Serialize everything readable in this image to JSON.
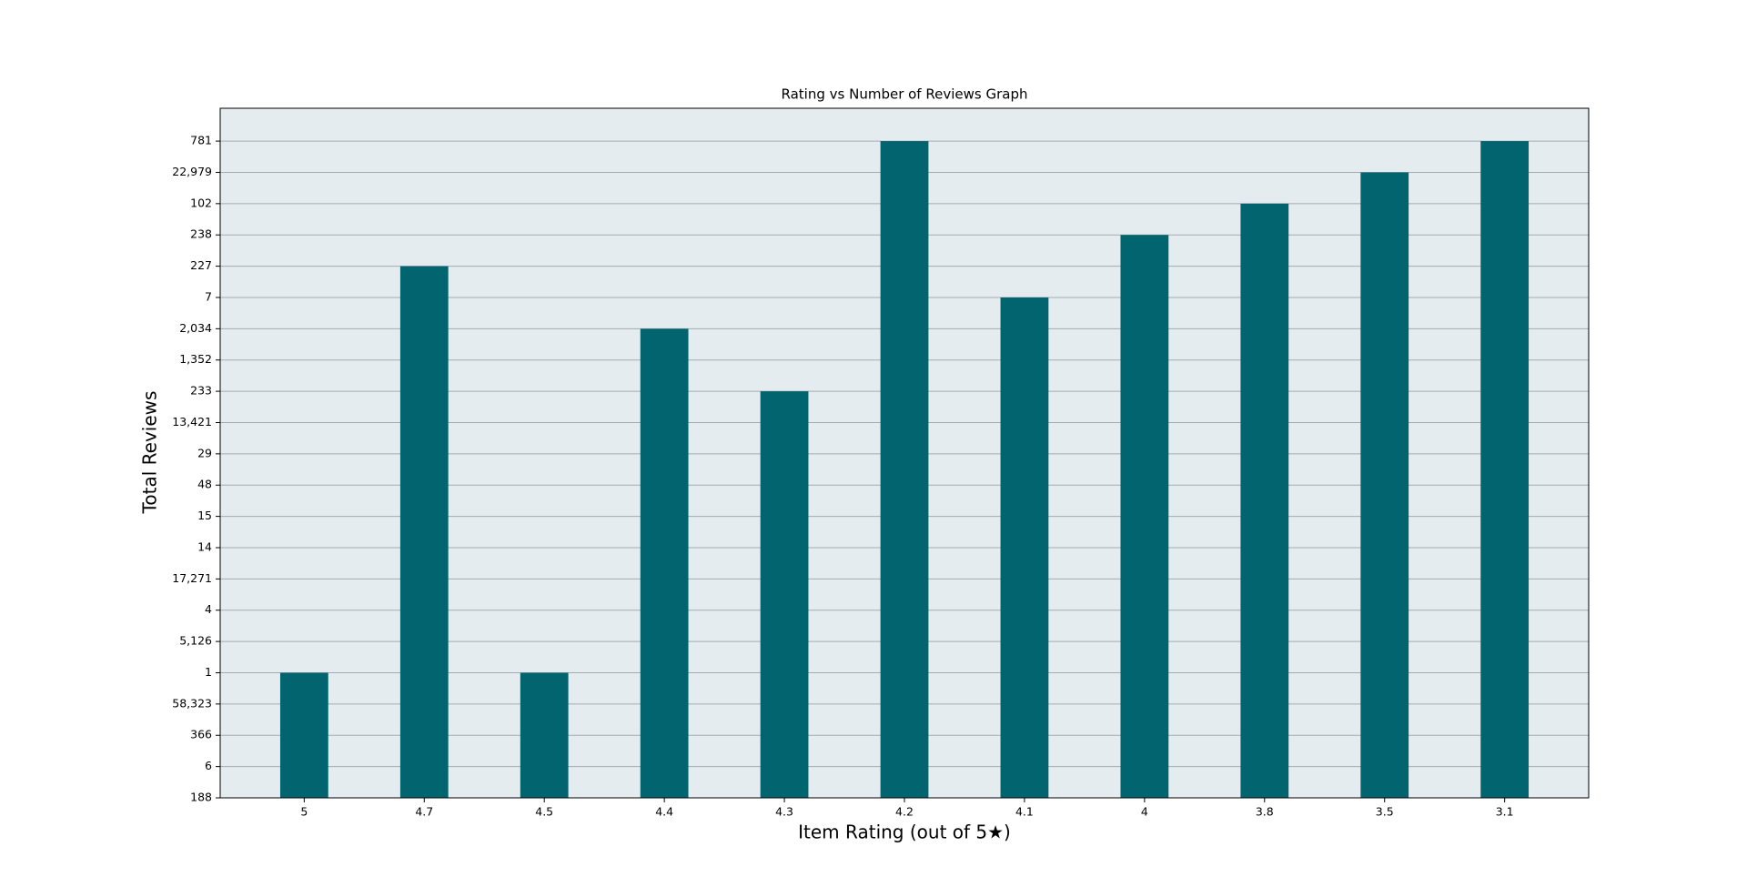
{
  "chart_data": {
    "type": "bar",
    "title": "Rating vs Number of Reviews Graph",
    "x_label": "Item Rating (out of 5★)",
    "y_label": "Total Reviews",
    "categories": [
      "5",
      "4.7",
      "4.5",
      "4.4",
      "4.3",
      "4.2",
      "4.1",
      "4",
      "3.8",
      "3.5",
      "3.1"
    ],
    "values": [
      4,
      17,
      4,
      15,
      13,
      21,
      16,
      18,
      19,
      20,
      21
    ],
    "color": "#02646e",
    "background": "#e5ecf0",
    "grid": true,
    "ylim": [
      0,
      22.05
    ],
    "yticks": [
      {
        "value": 0,
        "label": "188"
      },
      {
        "value": 1,
        "label": "6"
      },
      {
        "value": 2,
        "label": "366"
      },
      {
        "value": 3,
        "label": "58,323"
      },
      {
        "value": 4,
        "label": "1"
      },
      {
        "value": 5,
        "label": "5,126"
      },
      {
        "value": 6,
        "label": "4"
      },
      {
        "value": 7,
        "label": "17,271"
      },
      {
        "value": 8,
        "label": "14"
      },
      {
        "value": 9,
        "label": "15"
      },
      {
        "value": 10,
        "label": "48"
      },
      {
        "value": 11,
        "label": "29"
      },
      {
        "value": 12,
        "label": "13,421"
      },
      {
        "value": 13,
        "label": "233"
      },
      {
        "value": 14,
        "label": "1,352"
      },
      {
        "value": 15,
        "label": "2,034"
      },
      {
        "value": 16,
        "label": "7"
      },
      {
        "value": 17,
        "label": "227"
      },
      {
        "value": 18,
        "label": "238"
      },
      {
        "value": 19,
        "label": "102"
      },
      {
        "value": 20,
        "label": "22,979"
      },
      {
        "value": 21,
        "label": "781"
      }
    ]
  }
}
